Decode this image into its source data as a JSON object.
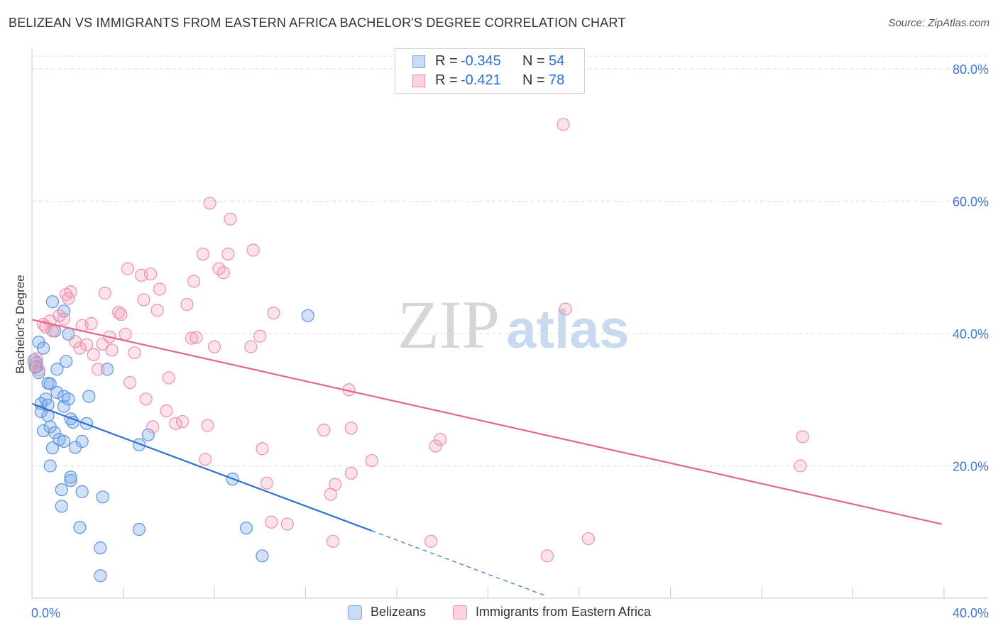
{
  "title": "BELIZEAN VS IMMIGRANTS FROM EASTERN AFRICA BACHELOR'S DEGREE CORRELATION CHART",
  "source": "Source: ZipAtlas.com",
  "watermark": {
    "zip": "ZIP",
    "atlas": "atlas"
  },
  "stats": [
    {
      "r_label": "R =",
      "r_value": "-0.345",
      "n_label": "N =",
      "n_value": "54",
      "color": "#7aa7e8",
      "fill": "#c9dcf7"
    },
    {
      "r_label": "R =",
      "r_value": "-0.421",
      "n_label": "N =",
      "n_value": "78",
      "color": "#f08fac",
      "fill": "#fbd3df"
    }
  ],
  "legend": [
    {
      "label": "Belizeans",
      "color": "#7aa7e8",
      "fill": "#c9dcf7"
    },
    {
      "label": "Immigrants from Eastern Africa",
      "color": "#f08fac",
      "fill": "#fbd3df"
    }
  ],
  "chart_data": {
    "type": "scatter",
    "ylabel": "Bachelor's Degree",
    "xlim": [
      0,
      40
    ],
    "ylim": [
      0,
      80
    ],
    "x_tick_labels": [
      {
        "value": 0,
        "label": "0.0%"
      },
      {
        "value": 40,
        "label": "40.0%"
      }
    ],
    "y_tick_labels": [
      {
        "value": 20,
        "label": "20.0%"
      },
      {
        "value": 40,
        "label": "40.0%"
      },
      {
        "value": 60,
        "label": "60.0%"
      },
      {
        "value": 80,
        "label": "80.0%"
      }
    ],
    "grid": true,
    "legend_position": "bottom",
    "series": [
      {
        "name": "Belizeans",
        "color": "#5b93e0",
        "line_color": "#2f72d2",
        "trend": {
          "x0": 0,
          "y0": 29.4,
          "x1": 14.9,
          "y1": 10.2,
          "dashed_to_x": 22.5
        },
        "points": [
          [
            0.1,
            36.0
          ],
          [
            0.2,
            35.6
          ],
          [
            0.15,
            34.9
          ],
          [
            0.3,
            34.1
          ],
          [
            0.3,
            38.7
          ],
          [
            0.5,
            37.8
          ],
          [
            0.4,
            29.4
          ],
          [
            0.4,
            28.2
          ],
          [
            0.5,
            25.3
          ],
          [
            0.6,
            30.1
          ],
          [
            0.7,
            27.6
          ],
          [
            0.7,
            29.2
          ],
          [
            0.7,
            32.5
          ],
          [
            0.8,
            32.4
          ],
          [
            0.8,
            25.9
          ],
          [
            0.8,
            20.0
          ],
          [
            0.9,
            44.8
          ],
          [
            0.9,
            22.7
          ],
          [
            1.0,
            40.4
          ],
          [
            1.0,
            25.0
          ],
          [
            1.1,
            31.1
          ],
          [
            1.1,
            34.6
          ],
          [
            1.2,
            24.0
          ],
          [
            1.3,
            16.4
          ],
          [
            1.3,
            13.9
          ],
          [
            1.4,
            29.0
          ],
          [
            1.4,
            23.7
          ],
          [
            1.4,
            43.4
          ],
          [
            1.4,
            30.5
          ],
          [
            1.5,
            35.8
          ],
          [
            1.6,
            30.1
          ],
          [
            1.6,
            39.9
          ],
          [
            1.7,
            17.8
          ],
          [
            1.7,
            18.3
          ],
          [
            1.7,
            27.1
          ],
          [
            1.8,
            26.6
          ],
          [
            1.9,
            22.8
          ],
          [
            2.1,
            10.7
          ],
          [
            2.2,
            16.1
          ],
          [
            2.2,
            23.7
          ],
          [
            2.4,
            26.4
          ],
          [
            2.5,
            30.5
          ],
          [
            3.0,
            7.6
          ],
          [
            3.0,
            3.4
          ],
          [
            3.1,
            15.3
          ],
          [
            3.3,
            34.6
          ],
          [
            4.7,
            10.4
          ],
          [
            4.7,
            23.2
          ],
          [
            5.1,
            24.7
          ],
          [
            8.8,
            18.0
          ],
          [
            9.4,
            10.6
          ],
          [
            10.1,
            6.4
          ],
          [
            12.1,
            42.7
          ],
          [
            0.2,
            35.0
          ]
        ]
      },
      {
        "name": "Immigrants from Eastern Africa",
        "color": "#f08fac",
        "line_color": "#e2668f",
        "trend": {
          "x0": 0,
          "y0": 42.1,
          "x1": 39.9,
          "y1": 11.2
        },
        "points": [
          [
            0.1,
            35.4
          ],
          [
            0.2,
            36.2
          ],
          [
            0.3,
            34.5
          ],
          [
            0.5,
            41.4
          ],
          [
            0.6,
            41.0
          ],
          [
            0.8,
            41.9
          ],
          [
            0.9,
            40.4
          ],
          [
            1.2,
            42.7
          ],
          [
            1.4,
            42.2
          ],
          [
            1.5,
            45.9
          ],
          [
            1.6,
            45.3
          ],
          [
            1.7,
            46.3
          ],
          [
            1.9,
            38.8
          ],
          [
            2.1,
            37.8
          ],
          [
            2.2,
            41.2
          ],
          [
            2.4,
            38.3
          ],
          [
            2.6,
            41.5
          ],
          [
            2.7,
            36.8
          ],
          [
            2.9,
            34.6
          ],
          [
            3.1,
            38.4
          ],
          [
            3.2,
            46.1
          ],
          [
            3.4,
            39.5
          ],
          [
            3.5,
            37.5
          ],
          [
            3.8,
            43.2
          ],
          [
            3.9,
            42.9
          ],
          [
            4.1,
            39.9
          ],
          [
            4.2,
            49.8
          ],
          [
            4.3,
            32.6
          ],
          [
            4.5,
            37.1
          ],
          [
            4.8,
            48.8
          ],
          [
            4.9,
            45.1
          ],
          [
            5.0,
            30.1
          ],
          [
            5.2,
            49.0
          ],
          [
            5.3,
            25.9
          ],
          [
            5.5,
            43.5
          ],
          [
            5.6,
            46.7
          ],
          [
            5.9,
            28.3
          ],
          [
            6.0,
            33.3
          ],
          [
            6.3,
            26.4
          ],
          [
            6.6,
            26.7
          ],
          [
            6.8,
            44.4
          ],
          [
            7.0,
            39.3
          ],
          [
            7.1,
            47.9
          ],
          [
            7.2,
            39.4
          ],
          [
            7.5,
            52.0
          ],
          [
            7.6,
            21.0
          ],
          [
            7.7,
            26.1
          ],
          [
            7.8,
            59.7
          ],
          [
            8.0,
            38.0
          ],
          [
            8.2,
            49.8
          ],
          [
            8.4,
            49.2
          ],
          [
            8.6,
            52.0
          ],
          [
            8.7,
            57.3
          ],
          [
            9.6,
            38.0
          ],
          [
            9.7,
            52.6
          ],
          [
            10.0,
            39.6
          ],
          [
            10.1,
            22.6
          ],
          [
            10.3,
            17.4
          ],
          [
            10.5,
            11.5
          ],
          [
            10.6,
            43.1
          ],
          [
            11.2,
            11.2
          ],
          [
            12.8,
            25.4
          ],
          [
            13.1,
            15.7
          ],
          [
            13.2,
            8.6
          ],
          [
            13.3,
            17.2
          ],
          [
            13.9,
            31.5
          ],
          [
            14.0,
            18.9
          ],
          [
            14.0,
            25.7
          ],
          [
            14.9,
            20.8
          ],
          [
            17.5,
            8.6
          ],
          [
            17.7,
            23.0
          ],
          [
            17.9,
            24.0
          ],
          [
            22.6,
            6.4
          ],
          [
            23.3,
            71.6
          ],
          [
            23.4,
            43.7
          ],
          [
            24.4,
            9.0
          ],
          [
            33.7,
            20.0
          ],
          [
            33.8,
            24.4
          ]
        ]
      }
    ]
  }
}
